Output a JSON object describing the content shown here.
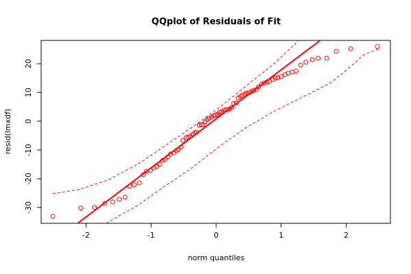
{
  "chart_data": {
    "type": "scatter",
    "title": "QQplot of Residuals of Fit",
    "xlabel": "norm quantiles",
    "ylabel": "resid(lmxdf)",
    "color": "#ff0000",
    "xlim": [
      -2.69,
      2.68
    ],
    "ylim": [
      -35.5,
      28.1
    ],
    "xticks": [
      -2,
      -1,
      0,
      1,
      2
    ],
    "yticks": [
      -30,
      -20,
      -10,
      0,
      10,
      20
    ],
    "x": [
      -2.51,
      -2.08,
      -1.87,
      -1.71,
      -1.59,
      -1.49,
      -1.4,
      -1.33,
      -1.26,
      -1.18,
      -1.12,
      -1.07,
      -1.01,
      -0.96,
      -0.91,
      -0.87,
      -0.82,
      -0.78,
      -0.74,
      -0.7,
      -0.65,
      -0.61,
      -0.58,
      -0.54,
      -0.51,
      -0.46,
      -0.43,
      -0.4,
      -0.36,
      -0.33,
      -0.3,
      -0.26,
      -0.23,
      -0.2,
      -0.17,
      -0.14,
      -0.11,
      -0.07,
      -0.04,
      -0.01,
      0.02,
      0.05,
      0.08,
      0.12,
      0.15,
      0.18,
      0.21,
      0.24,
      0.27,
      0.31,
      0.34,
      0.37,
      0.4,
      0.44,
      0.47,
      0.51,
      0.55,
      0.58,
      0.62,
      0.65,
      0.7,
      0.74,
      0.78,
      0.82,
      0.87,
      0.91,
      0.95,
      1.0,
      1.06,
      1.11,
      1.17,
      1.23,
      1.3,
      1.38,
      1.48,
      1.57,
      1.7,
      1.85,
      2.07,
      2.48
    ],
    "values": [
      -33.1,
      -30.2,
      -30,
      -28.6,
      -28.1,
      -27.1,
      -26.4,
      -22.6,
      -22.1,
      -21.4,
      -18.6,
      -17.4,
      -17.1,
      -16.2,
      -15.7,
      -15,
      -13.6,
      -13.3,
      -12.4,
      -11.4,
      -11,
      -10.2,
      -9.8,
      -9,
      -6.7,
      -5.7,
      -5.5,
      -5.2,
      -4.5,
      -4,
      -3.8,
      -1.4,
      -1.2,
      -1.2,
      -0.2,
      0.5,
      1,
      1.4,
      1.9,
      2.1,
      2.4,
      3.1,
      3.3,
      3.8,
      4,
      4,
      4.3,
      4.8,
      6.2,
      6.4,
      8.1,
      8.6,
      9,
      9.5,
      9.8,
      10,
      10.5,
      10.7,
      11,
      11.9,
      12.9,
      13.3,
      13.6,
      13.8,
      14.5,
      15,
      15.2,
      15.5,
      16.2,
      16.7,
      17.1,
      17.4,
      19.5,
      20.5,
      21.4,
      21.9,
      21.9,
      24.3,
      25.2,
      26
    ],
    "reference_line": {
      "intercept": 0.82,
      "slope": 17.05
    },
    "envelope": [
      {
        "x": [
          -2.51,
          -2.08,
          -1.64,
          -1.21,
          -0.79,
          -0.37,
          0.05,
          0.47,
          0.9,
          1.27
        ],
        "values": [
          -25.2,
          -23.6,
          -20.2,
          -15,
          -8.6,
          -2.1,
          4.8,
          12.4,
          20.2,
          28.1
        ]
      },
      {
        "x": [
          -1.69,
          -1.21,
          -0.79,
          -0.37,
          0.05,
          0.47,
          0.9,
          1.32,
          1.74,
          1.95,
          2.27,
          2.53
        ],
        "values": [
          -35.5,
          -29.3,
          -22.6,
          -16.2,
          -8.8,
          -2.1,
          3.6,
          8.3,
          13.1,
          16.7,
          23.1,
          25.5
        ]
      }
    ]
  }
}
